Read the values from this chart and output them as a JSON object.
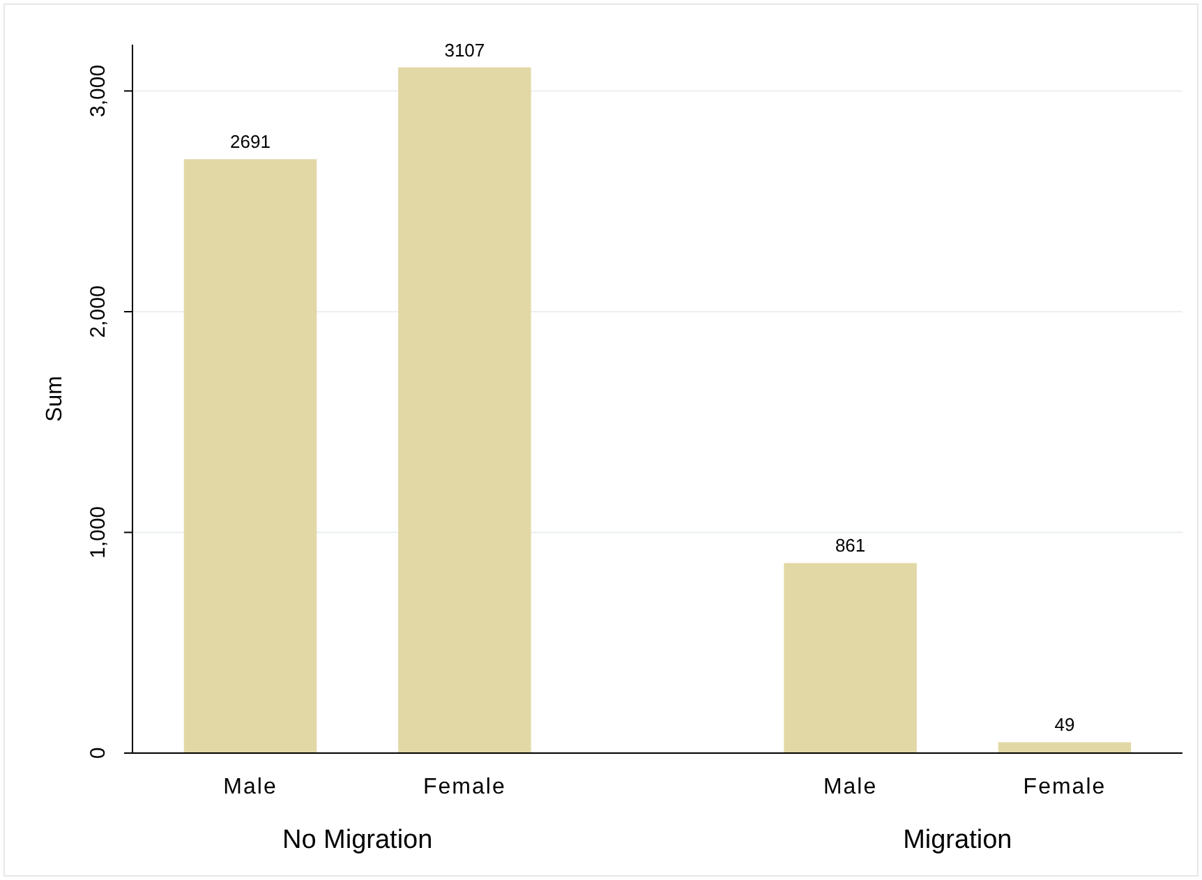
{
  "chart_data": {
    "type": "bar",
    "ylabel": "Sum",
    "categories": [
      "Male",
      "Female",
      "Male",
      "Female"
    ],
    "values": [
      2691,
      3107,
      861,
      49
    ],
    "color": "#e2d8a6",
    "ylim": [
      0,
      3210
    ],
    "yticks": [
      0,
      {
        "value": 1000,
        "label": "1,000"
      },
      {
        "value": 2000,
        "label": "2,000"
      },
      {
        "value": 3000,
        "label": "3,000"
      }
    ],
    "grid": "y",
    "data_labels": true,
    "annotations": [
      "No Migration",
      "Migration"
    ]
  }
}
